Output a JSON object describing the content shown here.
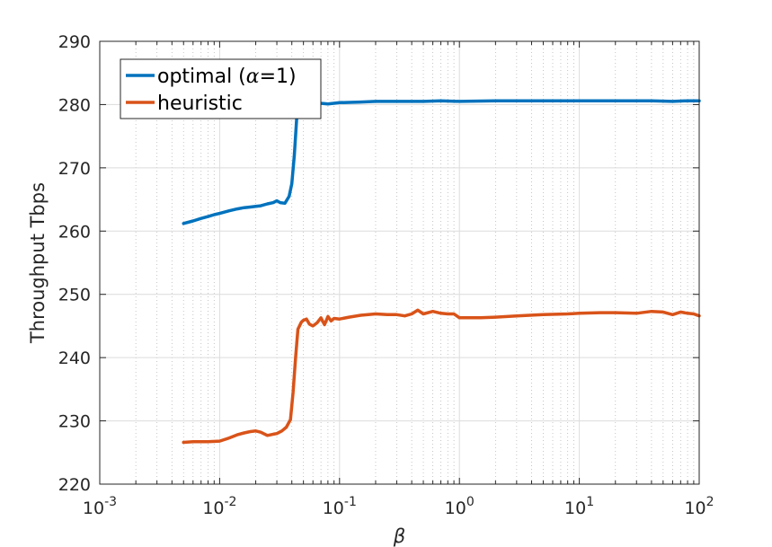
{
  "chart_data": {
    "type": "line",
    "xscale": "log",
    "xlim": [
      0.001,
      100
    ],
    "ylim": [
      220,
      290
    ],
    "xlabel": "β",
    "ylabel": "Throughput Tbps",
    "x_ticks": [
      {
        "value": 0.001,
        "base": "10",
        "exp": "-3"
      },
      {
        "value": 0.01,
        "base": "10",
        "exp": "-2"
      },
      {
        "value": 0.1,
        "base": "10",
        "exp": "-1"
      },
      {
        "value": 1,
        "base": "10",
        "exp": "0"
      },
      {
        "value": 10,
        "base": "10",
        "exp": "1"
      },
      {
        "value": 100,
        "base": "10",
        "exp": "2"
      }
    ],
    "y_ticks": [
      "220",
      "230",
      "240",
      "250",
      "260",
      "270",
      "280",
      "290"
    ],
    "grid": true,
    "minor_grid_x": true,
    "legend": {
      "position": "top-left",
      "entries": [
        {
          "prefix": "optimal (",
          "symbol": "α",
          "suffix": "=1)"
        },
        {
          "prefix": "heuristic",
          "symbol": "",
          "suffix": ""
        }
      ]
    },
    "series": [
      {
        "name": "optimal (α=1)",
        "color": "#0072BD",
        "points": [
          [
            0.005,
            261.2
          ],
          [
            0.006,
            261.6
          ],
          [
            0.007,
            262.0
          ],
          [
            0.008,
            262.3
          ],
          [
            0.009,
            262.6
          ],
          [
            0.01,
            262.8
          ],
          [
            0.012,
            263.2
          ],
          [
            0.014,
            263.5
          ],
          [
            0.016,
            263.7
          ],
          [
            0.018,
            263.8
          ],
          [
            0.02,
            263.9
          ],
          [
            0.022,
            264.0
          ],
          [
            0.025,
            264.3
          ],
          [
            0.028,
            264.5
          ],
          [
            0.03,
            264.8
          ],
          [
            0.032,
            264.5
          ],
          [
            0.035,
            264.4
          ],
          [
            0.038,
            265.5
          ],
          [
            0.04,
            267.5
          ],
          [
            0.042,
            272.0
          ],
          [
            0.044,
            278.0
          ],
          [
            0.046,
            280.5
          ],
          [
            0.05,
            280.8
          ],
          [
            0.06,
            280.5
          ],
          [
            0.07,
            280.2
          ],
          [
            0.08,
            280.1
          ],
          [
            0.1,
            280.3
          ],
          [
            0.15,
            280.4
          ],
          [
            0.2,
            280.5
          ],
          [
            0.3,
            280.5
          ],
          [
            0.5,
            280.5
          ],
          [
            0.7,
            280.6
          ],
          [
            1,
            280.5
          ],
          [
            2,
            280.6
          ],
          [
            5,
            280.6
          ],
          [
            10,
            280.6
          ],
          [
            20,
            280.6
          ],
          [
            40,
            280.6
          ],
          [
            60,
            280.5
          ],
          [
            80,
            280.6
          ],
          [
            100,
            280.6
          ]
        ]
      },
      {
        "name": "heuristic",
        "color": "#D95319",
        "points": [
          [
            0.005,
            226.6
          ],
          [
            0.006,
            226.7
          ],
          [
            0.007,
            226.7
          ],
          [
            0.008,
            226.7
          ],
          [
            0.01,
            226.8
          ],
          [
            0.012,
            227.3
          ],
          [
            0.014,
            227.8
          ],
          [
            0.016,
            228.1
          ],
          [
            0.018,
            228.3
          ],
          [
            0.02,
            228.4
          ],
          [
            0.022,
            228.2
          ],
          [
            0.025,
            227.7
          ],
          [
            0.028,
            227.9
          ],
          [
            0.03,
            228.0
          ],
          [
            0.033,
            228.4
          ],
          [
            0.036,
            229.0
          ],
          [
            0.039,
            230.2
          ],
          [
            0.041,
            234.5
          ],
          [
            0.043,
            240.0
          ],
          [
            0.045,
            244.5
          ],
          [
            0.048,
            245.6
          ],
          [
            0.05,
            245.9
          ],
          [
            0.053,
            246.1
          ],
          [
            0.056,
            245.3
          ],
          [
            0.06,
            245.0
          ],
          [
            0.065,
            245.5
          ],
          [
            0.07,
            246.3
          ],
          [
            0.075,
            245.2
          ],
          [
            0.08,
            246.5
          ],
          [
            0.085,
            245.8
          ],
          [
            0.09,
            246.2
          ],
          [
            0.1,
            246.1
          ],
          [
            0.12,
            246.4
          ],
          [
            0.15,
            246.7
          ],
          [
            0.2,
            246.9
          ],
          [
            0.25,
            246.8
          ],
          [
            0.3,
            246.8
          ],
          [
            0.35,
            246.6
          ],
          [
            0.4,
            246.9
          ],
          [
            0.45,
            247.5
          ],
          [
            0.5,
            246.9
          ],
          [
            0.6,
            247.3
          ],
          [
            0.7,
            247.0
          ],
          [
            0.8,
            246.9
          ],
          [
            0.9,
            246.9
          ],
          [
            1,
            246.3
          ],
          [
            1.5,
            246.3
          ],
          [
            2,
            246.4
          ],
          [
            3,
            246.6
          ],
          [
            5,
            246.8
          ],
          [
            8,
            246.9
          ],
          [
            10,
            247.0
          ],
          [
            15,
            247.1
          ],
          [
            20,
            247.1
          ],
          [
            30,
            247.0
          ],
          [
            40,
            247.3
          ],
          [
            50,
            247.2
          ],
          [
            60,
            246.8
          ],
          [
            70,
            247.2
          ],
          [
            80,
            247.0
          ],
          [
            90,
            246.9
          ],
          [
            100,
            246.6
          ]
        ]
      }
    ]
  }
}
